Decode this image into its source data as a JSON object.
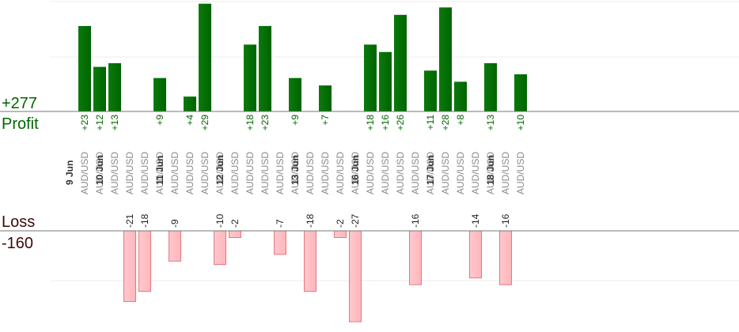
{
  "labels": {
    "profit_total": "+277",
    "profit_title": "Profit",
    "loss_title": "Loss",
    "loss_total": "-160"
  },
  "colors": {
    "profit_bar": "#006400",
    "loss_bar": "#ffb6bb",
    "loss_bar_stroke": "#e07a82"
  },
  "chart_data": {
    "type": "bar",
    "profit_ylim": [
      0,
      30
    ],
    "loss_ylim": [
      0,
      27
    ],
    "dates": [
      "9 Jun",
      "10 Jun",
      "11 Jun",
      "12 Jun",
      "13 Jun",
      "16 Jun",
      "17 Jun",
      "18 Jun"
    ],
    "trades": [
      {
        "date": "9 Jun",
        "pair": "AUD/USD",
        "profit": 23,
        "label": "+23"
      },
      {
        "date": "9 Jun",
        "pair": "AUD/USD",
        "profit": 12,
        "label": "+12"
      },
      {
        "date": "10 Jun",
        "pair": "AUD/USD",
        "profit": 13,
        "label": "+13"
      },
      {
        "date": "10 Jun",
        "pair": "AUD/USD",
        "loss": 21,
        "label": "-21"
      },
      {
        "date": "10 Jun",
        "pair": "AUD/USD",
        "loss": 18,
        "label": "-18"
      },
      {
        "date": "10 Jun",
        "pair": "AUD/USD",
        "profit": 9,
        "label": "+9"
      },
      {
        "date": "11 Jun",
        "pair": "AUD/USD",
        "loss": 9,
        "label": "-9"
      },
      {
        "date": "11 Jun",
        "pair": "AUD/USD",
        "profit": 4,
        "label": "+4"
      },
      {
        "date": "11 Jun",
        "pair": "AUD/USD",
        "profit": 29,
        "label": "+29"
      },
      {
        "date": "11 Jun",
        "pair": "AUD/USD",
        "loss": 10,
        "label": "-10"
      },
      {
        "date": "12 Jun",
        "pair": "AUD/USD",
        "loss": 2,
        "label": "-2"
      },
      {
        "date": "12 Jun",
        "pair": "AUD/USD",
        "profit": 18,
        "label": "+18"
      },
      {
        "date": "12 Jun",
        "pair": "AUD/USD",
        "profit": 23,
        "label": "+23"
      },
      {
        "date": "12 Jun",
        "pair": "AUD/USD",
        "loss": 7,
        "label": "-7"
      },
      {
        "date": "12 Jun",
        "pair": "AUD/USD",
        "profit": 9,
        "label": "+9"
      },
      {
        "date": "13 Jun",
        "pair": "AUD/USD",
        "loss": 18,
        "label": "-18"
      },
      {
        "date": "13 Jun",
        "pair": "AUD/USD",
        "profit": 7,
        "label": "+7"
      },
      {
        "date": "13 Jun",
        "pair": "AUD/USD",
        "loss": 2,
        "label": "-2"
      },
      {
        "date": "13 Jun",
        "pair": "AUD/USD",
        "loss": 27,
        "label": "-27"
      },
      {
        "date": "16 Jun",
        "pair": "AUD/USD",
        "profit": 18,
        "label": "+18"
      },
      {
        "date": "16 Jun",
        "pair": "AUD/USD",
        "profit": 16,
        "label": "+16"
      },
      {
        "date": "16 Jun",
        "pair": "AUD/USD",
        "profit": 26,
        "label": "+26"
      },
      {
        "date": "16 Jun",
        "pair": "AUD/USD",
        "loss": 16,
        "label": "-16"
      },
      {
        "date": "16 Jun",
        "pair": "AUD/USD",
        "profit": 11,
        "label": "+11"
      },
      {
        "date": "17 Jun",
        "pair": "AUD/USD",
        "profit": 28,
        "label": "+28"
      },
      {
        "date": "17 Jun",
        "pair": "AUD/USD",
        "profit": 8,
        "label": "+8"
      },
      {
        "date": "17 Jun",
        "pair": "AUD/USD",
        "loss": 14,
        "label": "-14"
      },
      {
        "date": "17 Jun",
        "pair": "AUD/USD",
        "profit": 13,
        "label": "+13"
      },
      {
        "date": "18 Jun",
        "pair": "AUD/USD",
        "loss": 16,
        "label": "-16"
      },
      {
        "date": "18 Jun",
        "pair": "AUD/USD",
        "profit": 10,
        "label": "+10"
      }
    ]
  }
}
